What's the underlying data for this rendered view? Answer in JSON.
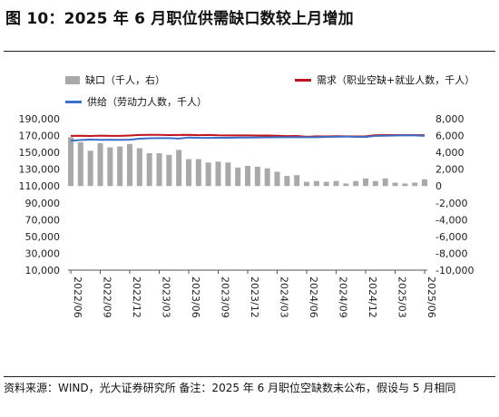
{
  "title": "图 10：2025 年 6 月职位供需缺口数较上月增加",
  "footer": "资料来源：WIND，光大证券研究所    备注：2025 年 6 月职位空缺数未公布，假设与 5 月相同",
  "chart_data": {
    "type": "bar+line",
    "legend": [
      {
        "name": "缺口（千人，右）",
        "kind": "bar",
        "color": "#a9a9a9"
      },
      {
        "name": "需求（职业空缺+就业人数，千人）",
        "kind": "line",
        "color": "#c0141e"
      },
      {
        "name": "供给（劳动力人数，千人）",
        "kind": "line",
        "color": "#3d6ec9"
      }
    ],
    "x_tick_labels": [
      "2022/06",
      "2022/09",
      "2022/12",
      "2023/03",
      "2023/06",
      "2023/09",
      "2023/12",
      "2024/03",
      "2024/06",
      "2024/09",
      "2024/12",
      "2025/03",
      "2025/06"
    ],
    "left_axis": {
      "min": 10000,
      "max": 190000,
      "step": 20000,
      "ticks": [
        "10,000",
        "30,000",
        "50,000",
        "70,000",
        "90,000",
        "110,000",
        "130,000",
        "150,000",
        "170,000",
        "190,000"
      ]
    },
    "right_axis": {
      "min": -10000,
      "max": 8000,
      "step": 2000,
      "ticks": [
        "-10,000",
        "-8,000",
        "-6,000",
        "-4,000",
        "-2,000",
        "0",
        "2,000",
        "4,000",
        "6,000",
        "8,000"
      ]
    },
    "months": [
      "2022/06",
      "2022/07",
      "2022/08",
      "2022/09",
      "2022/10",
      "2022/11",
      "2022/12",
      "2023/01",
      "2023/02",
      "2023/03",
      "2023/04",
      "2023/05",
      "2023/06",
      "2023/07",
      "2023/08",
      "2023/09",
      "2023/10",
      "2023/11",
      "2023/12",
      "2024/01",
      "2024/02",
      "2024/03",
      "2024/04",
      "2024/05",
      "2024/06",
      "2024/07",
      "2024/08",
      "2024/09",
      "2024/10",
      "2024/11",
      "2024/12",
      "2025/01",
      "2025/02",
      "2025/03",
      "2025/04",
      "2025/05",
      "2025/06"
    ],
    "series": [
      {
        "name": "缺口（千人，右）",
        "axis": "right",
        "values": [
          5800,
          5200,
          4200,
          5100,
          4600,
          4700,
          5000,
          4500,
          3900,
          3900,
          3700,
          4300,
          3200,
          3200,
          2800,
          2900,
          2800,
          2200,
          2400,
          2300,
          2100,
          1700,
          1200,
          1300,
          500,
          600,
          500,
          600,
          300,
          600,
          900,
          600,
          900,
          400,
          300,
          400,
          800
        ]
      },
      {
        "name": "需求（职业空缺+就业人数，千人）",
        "axis": "left",
        "values": [
          169700,
          169800,
          169500,
          169900,
          169700,
          169600,
          170100,
          170700,
          170800,
          170900,
          170600,
          170700,
          170900,
          170500,
          170700,
          170300,
          170200,
          170200,
          170200,
          170100,
          170100,
          169800,
          169400,
          169500,
          168600,
          169100,
          169000,
          169200,
          169100,
          169000,
          169100,
          170400,
          170600,
          170600,
          170600,
          170600,
          170400
        ]
      },
      {
        "name": "供给（劳动力人数，千人）",
        "axis": "left",
        "values": [
          164000,
          164700,
          165300,
          165000,
          165100,
          164900,
          165100,
          166300,
          166800,
          167000,
          166900,
          166400,
          167700,
          167300,
          167200,
          167300,
          167300,
          167700,
          167700,
          167800,
          167900,
          168000,
          168100,
          168100,
          168100,
          168100,
          168400,
          168600,
          168800,
          168400,
          168300,
          169600,
          169800,
          170100,
          170300,
          170200,
          169600
        ]
      }
    ]
  }
}
